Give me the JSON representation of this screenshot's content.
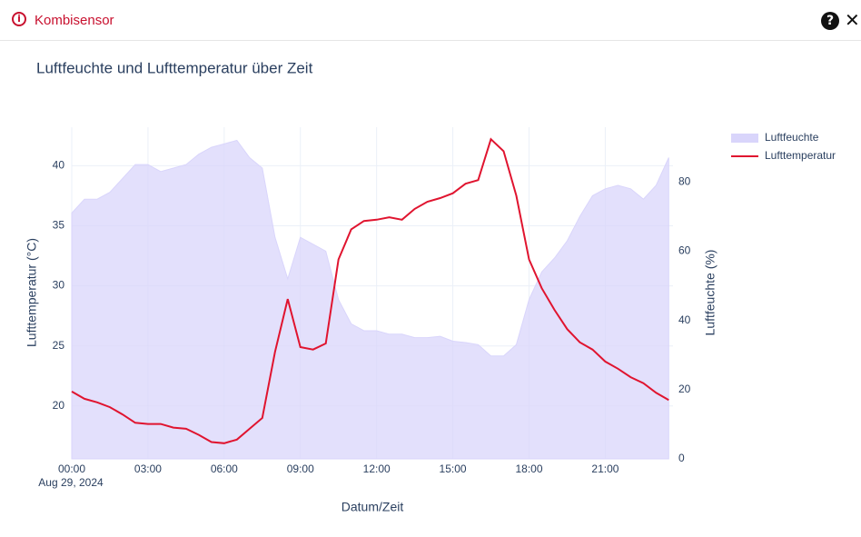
{
  "header": {
    "title": "Kombisensor"
  },
  "chart_data": {
    "type": "line",
    "title": "Luftfeuchte und Lufttemperatur über Zeit",
    "x_label": "Datum/Zeit",
    "x_date_label": "Aug 29, 2024",
    "y_label": "Lufttemperatur (°C)",
    "y2_label": "Luftfeuchte (%)",
    "x": [
      "2024-08-29 00:00",
      "2024-08-29 00:30",
      "2024-08-29 01:00",
      "2024-08-29 01:30",
      "2024-08-29 02:00",
      "2024-08-29 02:30",
      "2024-08-29 03:00",
      "2024-08-29 03:30",
      "2024-08-29 04:00",
      "2024-08-29 04:30",
      "2024-08-29 05:00",
      "2024-08-29 05:30",
      "2024-08-29 06:00",
      "2024-08-29 06:30",
      "2024-08-29 07:00",
      "2024-08-29 07:30",
      "2024-08-29 08:00",
      "2024-08-29 08:30",
      "2024-08-29 09:00",
      "2024-08-29 09:30",
      "2024-08-29 10:00",
      "2024-08-29 10:30",
      "2024-08-29 11:00",
      "2024-08-29 11:30",
      "2024-08-29 12:00",
      "2024-08-29 12:30",
      "2024-08-29 13:00",
      "2024-08-29 13:30",
      "2024-08-29 14:00",
      "2024-08-29 14:30",
      "2024-08-29 15:00",
      "2024-08-29 15:30",
      "2024-08-29 16:00",
      "2024-08-29 16:30",
      "2024-08-29 17:00",
      "2024-08-29 17:30",
      "2024-08-29 18:00",
      "2024-08-29 18:30",
      "2024-08-29 19:00",
      "2024-08-29 19:30",
      "2024-08-29 20:00",
      "2024-08-29 20:30",
      "2024-08-29 21:00",
      "2024-08-29 21:30",
      "2024-08-29 22:00",
      "2024-08-29 22:30",
      "2024-08-29 23:00",
      "2024-08-29 23:30"
    ],
    "xlim": [
      "2024-08-29 00:00",
      "2024-08-29 23:40"
    ],
    "xticks": [
      {
        "value": "2024-08-29 00:00",
        "label": "00:00"
      },
      {
        "value": "2024-08-29 03:00",
        "label": "03:00"
      },
      {
        "value": "2024-08-29 06:00",
        "label": "06:00"
      },
      {
        "value": "2024-08-29 09:00",
        "label": "09:00"
      },
      {
        "value": "2024-08-29 12:00",
        "label": "12:00"
      },
      {
        "value": "2024-08-29 15:00",
        "label": "15:00"
      },
      {
        "value": "2024-08-29 18:00",
        "label": "18:00"
      },
      {
        "value": "2024-08-29 21:00",
        "label": "21:00"
      }
    ],
    "ylim": [
      15.6,
      43.2
    ],
    "yticks": [
      20,
      25,
      30,
      35,
      40
    ],
    "y2lim": [
      0,
      95.8
    ],
    "y2ticks": [
      0,
      20,
      40,
      60,
      80
    ],
    "grid": true,
    "legend": "top-right",
    "series": [
      {
        "name": "Luftfeuchte",
        "color": "#d9d5fb",
        "axis": "y2",
        "fill": true,
        "values": [
          71,
          75,
          75,
          77,
          81,
          85,
          85,
          83,
          84,
          85,
          88,
          90,
          91,
          92,
          87,
          84,
          64,
          52,
          64,
          62,
          60,
          46,
          39,
          37,
          37,
          36,
          36,
          35,
          35,
          35.4,
          34,
          33.6,
          33,
          29.7,
          29.7,
          33,
          46,
          54,
          58,
          63,
          70,
          76,
          78,
          79,
          78,
          75,
          79,
          87
        ]
      },
      {
        "name": "Lufttemperatur",
        "color": "#e0142f",
        "values": [
          21.2,
          20.6,
          20.3,
          19.9,
          19.3,
          18.6,
          18.5,
          18.5,
          18.2,
          18.1,
          17.6,
          17.0,
          16.9,
          17.2,
          18.1,
          19.0,
          24.5,
          28.9,
          24.9,
          24.7,
          25.2,
          32.2,
          34.7,
          35.4,
          35.5,
          35.7,
          35.5,
          36.4,
          37.0,
          37.3,
          37.7,
          38.5,
          38.8,
          42.2,
          41.2,
          37.5,
          32.2,
          29.8,
          28.0,
          26.4,
          25.3,
          24.7,
          23.7,
          23.1,
          22.4,
          21.9,
          21.1,
          20.5
        ]
      }
    ]
  }
}
